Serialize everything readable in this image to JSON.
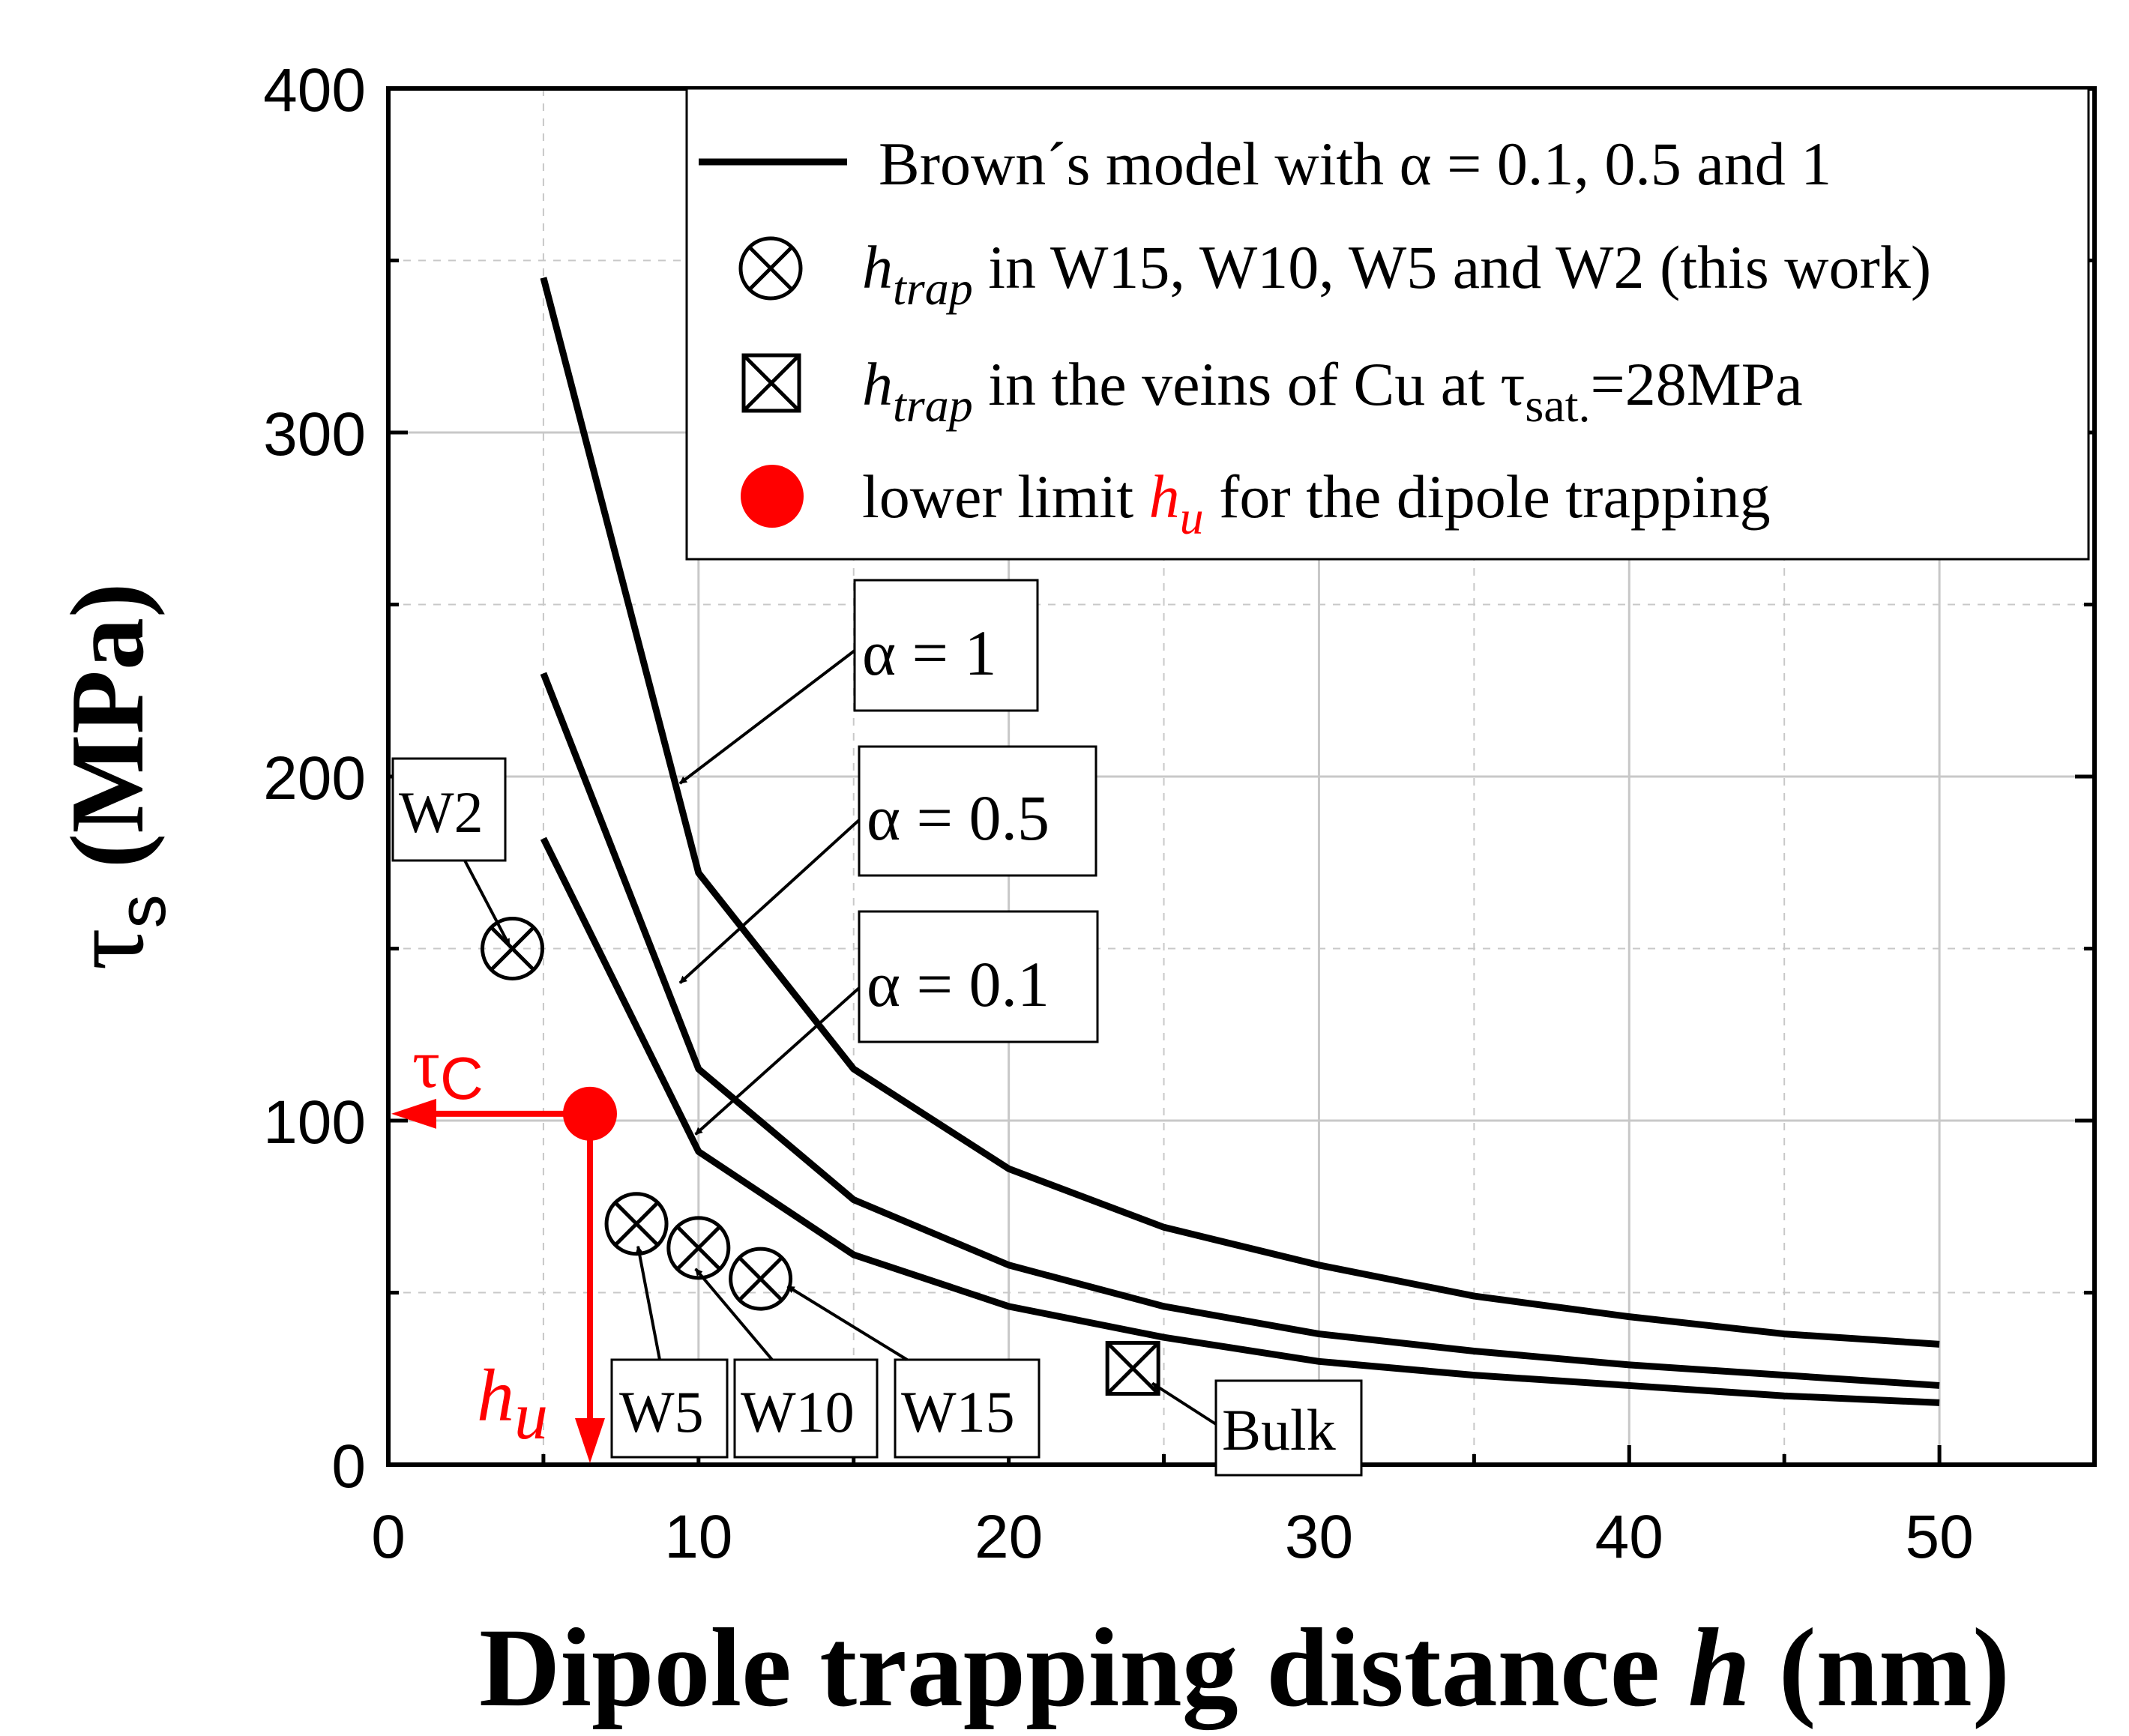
{
  "chart_data": {
    "type": "line",
    "title": "",
    "xlabel": "Dipole trapping distance",
    "xlabel_var": "h",
    "xlabel_unit": "(nm)",
    "ylabel": "τ",
    "ylabel_sub": "s",
    "ylabel_unit": "(MPa)",
    "xlim": [
      0,
      55
    ],
    "ylim": [
      0,
      400
    ],
    "xticks": [
      0,
      10,
      20,
      30,
      40,
      50
    ],
    "yticks": [
      0,
      100,
      200,
      300,
      400
    ],
    "grid": true,
    "series": [
      {
        "name": "α = 1",
        "x": [
          5,
          10,
          15,
          20,
          25,
          30,
          35,
          40,
          45,
          50
        ],
        "y": [
          345,
          172,
          115,
          86,
          69,
          58,
          49,
          43,
          38,
          35
        ]
      },
      {
        "name": "α = 0.5",
        "x": [
          5,
          10,
          15,
          20,
          25,
          30,
          35,
          40,
          45,
          50
        ],
        "y": [
          230,
          115,
          77,
          58,
          46,
          38,
          33,
          29,
          26,
          23
        ]
      },
      {
        "name": "α = 0.1",
        "x": [
          5,
          10,
          15,
          20,
          25,
          30,
          35,
          40,
          45,
          50
        ],
        "y": [
          182,
          91,
          61,
          46,
          37,
          30,
          26,
          23,
          20,
          18
        ]
      }
    ],
    "points_this_work": [
      {
        "label": "W2",
        "x": 4,
        "y": 150
      },
      {
        "label": "W5",
        "x": 8,
        "y": 70
      },
      {
        "label": "W10",
        "x": 10,
        "y": 63
      },
      {
        "label": "W15",
        "x": 12,
        "y": 54
      }
    ],
    "point_bulk": {
      "label": "Bulk",
      "x": 24,
      "y": 28
    },
    "point_lower_limit": {
      "x": 6.5,
      "y": 102
    },
    "red_labels": {
      "tau": "τ",
      "tau_sub": "C",
      "h": "h",
      "h_sub": "u"
    },
    "alpha_labels": [
      "α = 1",
      "α = 0.5",
      "α = 0.1"
    ],
    "legend": {
      "placement": "top-right",
      "entry1": "Brown´s model with α = 0.1, 0.5 and 1",
      "entry2_var": "h",
      "entry2_sub": "trap",
      "entry2_rest": "in W15, W10, W5 and W2 (this work)",
      "entry3_var": "h",
      "entry3_sub": "trap",
      "entry3_mid": "in the veins of Cu at τ",
      "entry3_sub2": "sat.",
      "entry3_end": "=28MPa",
      "entry4_pre": "lower limit",
      "entry4_var": "h",
      "entry4_sub": "u",
      "entry4_end": "for the dipole trapping"
    },
    "colors": {
      "line": "#000000",
      "accent": "#ff0000",
      "grid": "#c8c8c8"
    }
  }
}
